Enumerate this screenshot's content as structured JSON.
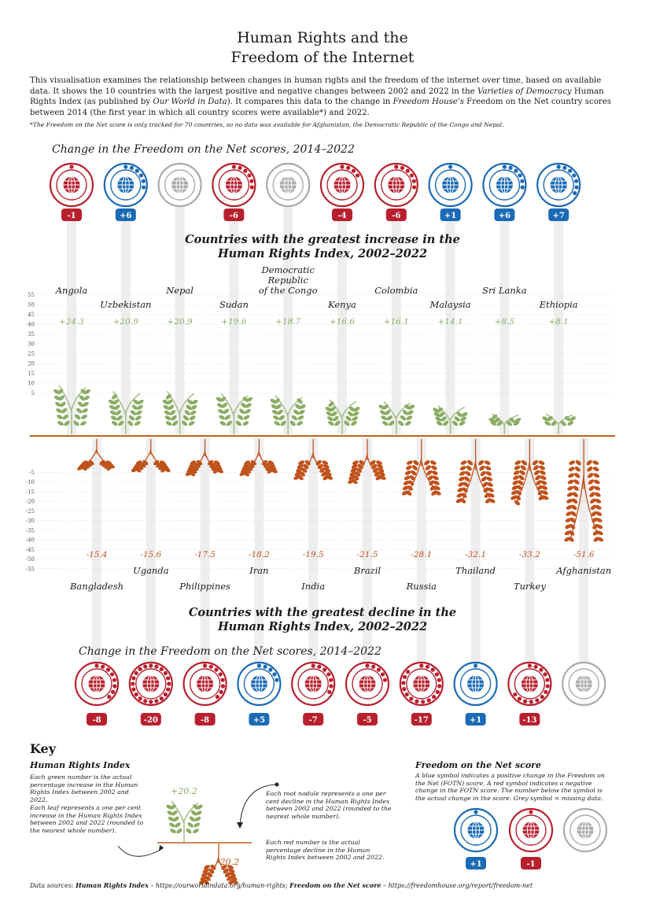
{
  "title": {
    "line1": "Human Rights and the",
    "line2": "Freedom of the Internet"
  },
  "intro": {
    "p1": "This visualisation examines the relationship between changes in human rights and the freedom of the internet over time, based on available data. It shows the 10 countries with the largest positive and negative changes between 2002 and 2022 in the ",
    "vdem": "Varieties of Democracy",
    "p2": " Human Rights Index (as published by ",
    "owid": "Our World in Data",
    "p3": "). It compares this data to the change in ",
    "fh": "Freedom House's",
    "p4": " Freedom on the Net country scores between 2014 (the first year in which all country scores were available*) and 2022."
  },
  "footnote": "*The Freedom on the Net score is only tracked for 70 countries, so no data was available for Afghanistan, the Democratic Republic of the Congo and Nepal.",
  "section_top_fotn": "Change in the Freedom on the Net scores, 2014–2022",
  "section_top_hr": {
    "line1": "Countries with the greatest increase in the",
    "line2": "Human Rights Index, 2002–2022"
  },
  "section_bottom_hr": {
    "line1": "Countries with the greatest decline in the",
    "line2": "Human Rights Index, 2002–2022"
  },
  "section_bottom_fotn": "Change in the Freedom on the Net scores, 2014–2022",
  "colors": {
    "leaf": "#8aac64",
    "stem": "#a8bf8c",
    "root": "#c0521c",
    "axis": "#b5651d",
    "tick": "#555555",
    "grid": "#cccccc",
    "positive": "#1b6ab5",
    "negative": "#b8202e",
    "missing": "#aaaaaa",
    "column": "#eeeeee"
  },
  "chart_data": [
    {
      "type": "bar",
      "title": "Countries with the greatest increase in the Human Rights Index, 2002–2022",
      "categories": [
        "Angola",
        "Uzbekistan",
        "Nepal",
        "Sudan",
        "Democratic Republic of the Congo",
        "Kenya",
        "Colombia",
        "Malaysia",
        "Sri Lanka",
        "Ethiopia"
      ],
      "label_lines": [
        [
          "Angola"
        ],
        [
          "Uzbekistan"
        ],
        [
          "Nepal"
        ],
        [
          "Sudan"
        ],
        [
          "Democratic",
          "Republic",
          "of the Congo"
        ],
        [
          "Kenya"
        ],
        [
          "Colombia"
        ],
        [
          "Malaysia"
        ],
        [
          "Sri Lanka"
        ],
        [
          "Ethiopia"
        ]
      ],
      "values": [
        24.3,
        20.9,
        20.9,
        19.6,
        18.7,
        16.6,
        16.1,
        14.1,
        8.5,
        8.1
      ],
      "value_labels": [
        "+24.3",
        "+20.9",
        "+20.9",
        "+19.6",
        "+18.7",
        "+16.6",
        "+16.1",
        "+14.1",
        "+8.5",
        "+8.1"
      ],
      "ylim": [
        0,
        55
      ],
      "yticks": [
        5,
        10,
        15,
        20,
        25,
        30,
        35,
        40,
        45,
        50,
        55
      ],
      "ylabel": "",
      "fotn_changes": [
        -1,
        6,
        null,
        -6,
        null,
        -4,
        -6,
        1,
        6,
        7
      ],
      "fotn_labels": [
        "-1",
        "+6",
        "",
        "-6",
        "",
        "-4",
        "-6",
        "+1",
        "+6",
        "+7"
      ]
    },
    {
      "type": "bar",
      "title": "Countries with the greatest decline in the Human Rights Index, 2002–2022",
      "categories": [
        "Bangladesh",
        "Uganda",
        "Philippines",
        "Iran",
        "India",
        "Brazil",
        "Russia",
        "Thailand",
        "Turkey",
        "Afghanistan"
      ],
      "values": [
        -15.4,
        -15.6,
        -17.5,
        -18.2,
        -19.5,
        -21.5,
        -28.1,
        -32.1,
        -33.2,
        -51.6
      ],
      "value_labels": [
        "-15.4",
        "-15.6",
        "-17.5",
        "-18.2",
        "-19.5",
        "-21.5",
        "-28.1",
        "-32.1",
        "-33.2",
        "-51.6"
      ],
      "ylim": [
        -55,
        0
      ],
      "yticks": [
        -5,
        -10,
        -15,
        -20,
        -25,
        -30,
        -35,
        -40,
        -45,
        -50,
        -55
      ],
      "fotn_changes": [
        -8,
        -20,
        -8,
        5,
        -7,
        -5,
        -17,
        1,
        -13,
        null
      ],
      "fotn_labels": [
        "-8",
        "-20",
        "-8",
        "+5",
        "-7",
        "-5",
        "-17",
        "+1",
        "-13",
        ""
      ]
    }
  ],
  "key": {
    "heading": "Key",
    "hri_title": "Human Rights Index",
    "hri_green_number": "Each green number is the actual percentage increase in the Human Rights Index between 2002 and 2022.",
    "hri_leaf": "Each leaf represents a one per cent increase in the Human Rights Index between 2002 and 2022 (rounded to the nearest whole number).",
    "hri_root": "Each root nodule represents a one per cent decline in the Human Rights Index between 2002 and 2022 (rounded to the nearest whole number).",
    "hri_red_number": "Each red number is the actual percentage decline in the Human Rights Index between 2002 and 2022.",
    "example_positive": "+20.2",
    "example_negative": "-20.2",
    "fotn_title": "Freedom on the Net score",
    "fotn_desc": "A blue symbol indicates a positive change in the Freedom on the Net (FOTN) score. A red symbol indicates a negative change in the FOTN score. The number below the symbol is the actual change in the score. Grey symbol = missing data.",
    "fotn_example_pos": "+1",
    "fotn_example_neg": "-1"
  },
  "sources": {
    "prefix": "Data sources: ",
    "hri_name": "Human Rights Index",
    "hri_url": " – https://ourworldindata.org/human-rights; ",
    "fotn_name": "Freedom on the Net score",
    "fotn_url": " – https://freedomhouse.org/report/freedom-net"
  }
}
